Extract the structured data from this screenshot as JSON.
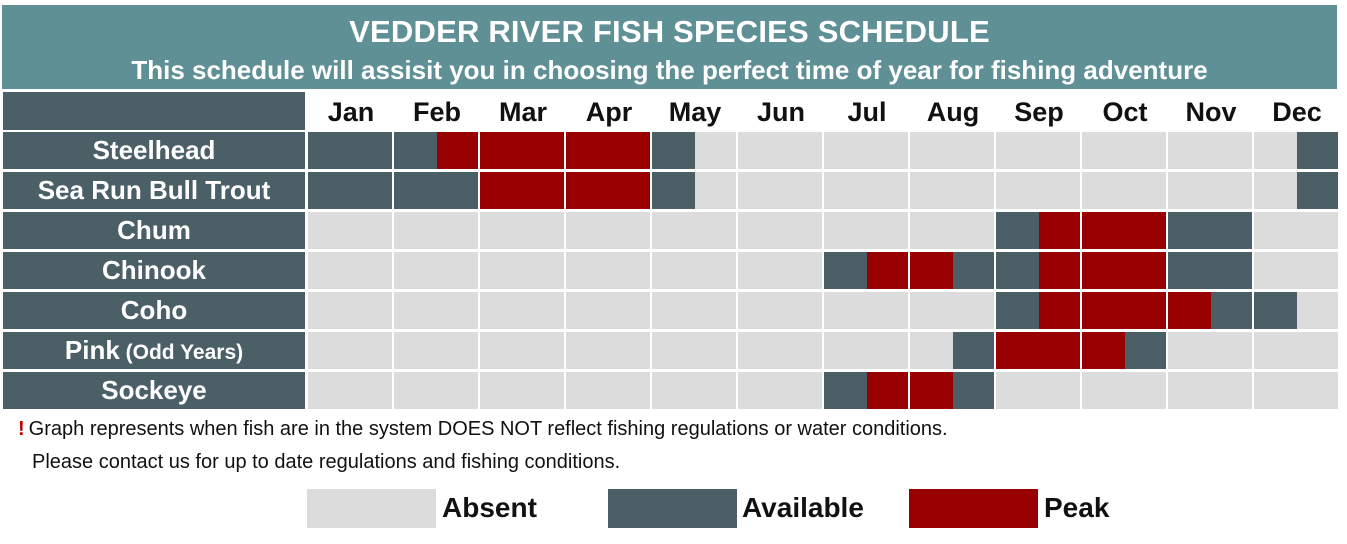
{
  "title": "VEDDER RIVER FISH SPECIES SCHEDULE",
  "subtitle": "This schedule will assisit you in choosing the perfect time of year for fishing adventure",
  "colors": {
    "absent": "#dcdcdc",
    "available": "#4b5f66",
    "peak": "#990000",
    "header_bg": "#5f9095",
    "label_bg": "#4b5f66"
  },
  "chart_data": {
    "type": "table",
    "months": [
      "Jan",
      "Feb",
      "Mar",
      "Apr",
      "May",
      "Jun",
      "Jul",
      "Aug",
      "Sep",
      "Oct",
      "Nov",
      "Dec"
    ],
    "status_codes": {
      "a": "Absent",
      "v": "Available",
      "p": "Peak"
    },
    "half_month_resolution": true,
    "species": [
      {
        "name": "Steelhead",
        "qualifier": "",
        "half_months": [
          "v",
          "v",
          "v",
          "p",
          "p",
          "p",
          "p",
          "p",
          "v",
          "a",
          "a",
          "a",
          "a",
          "a",
          "a",
          "a",
          "a",
          "a",
          "a",
          "a",
          "a",
          "a",
          "a",
          "v"
        ]
      },
      {
        "name": "Sea Run Bull Trout",
        "qualifier": "",
        "half_months": [
          "v",
          "v",
          "v",
          "v",
          "p",
          "p",
          "p",
          "p",
          "v",
          "a",
          "a",
          "a",
          "a",
          "a",
          "a",
          "a",
          "a",
          "a",
          "a",
          "a",
          "a",
          "a",
          "a",
          "v"
        ]
      },
      {
        "name": "Chum",
        "qualifier": "",
        "half_months": [
          "a",
          "a",
          "a",
          "a",
          "a",
          "a",
          "a",
          "a",
          "a",
          "a",
          "a",
          "a",
          "a",
          "a",
          "a",
          "a",
          "v",
          "p",
          "p",
          "p",
          "v",
          "v",
          "a",
          "a"
        ]
      },
      {
        "name": "Chinook",
        "qualifier": "",
        "half_months": [
          "a",
          "a",
          "a",
          "a",
          "a",
          "a",
          "a",
          "a",
          "a",
          "a",
          "a",
          "a",
          "v",
          "p",
          "p",
          "v",
          "v",
          "p",
          "p",
          "p",
          "v",
          "v",
          "a",
          "a"
        ]
      },
      {
        "name": "Coho",
        "qualifier": "",
        "half_months": [
          "a",
          "a",
          "a",
          "a",
          "a",
          "a",
          "a",
          "a",
          "a",
          "a",
          "a",
          "a",
          "a",
          "a",
          "a",
          "a",
          "v",
          "p",
          "p",
          "p",
          "p",
          "v",
          "v",
          "a"
        ]
      },
      {
        "name": "Pink",
        "qualifier": "(Odd Years)",
        "half_months": [
          "a",
          "a",
          "a",
          "a",
          "a",
          "a",
          "a",
          "a",
          "a",
          "a",
          "a",
          "a",
          "a",
          "a",
          "a",
          "v",
          "p",
          "p",
          "p",
          "v",
          "a",
          "a",
          "a",
          "a"
        ]
      },
      {
        "name": "Sockeye",
        "qualifier": "",
        "half_months": [
          "a",
          "a",
          "a",
          "a",
          "a",
          "a",
          "a",
          "a",
          "a",
          "a",
          "a",
          "a",
          "v",
          "p",
          "p",
          "v",
          "a",
          "a",
          "a",
          "a",
          "a",
          "a",
          "a",
          "a"
        ]
      }
    ]
  },
  "notes": {
    "mark": "!",
    "line1": "Graph represents when fish are in the system DOES NOT reflect fishing regulations or water conditions.",
    "line2": "Please contact us for up to date regulations and fishing conditions."
  },
  "legend": [
    {
      "key": "absent",
      "label": "Absent"
    },
    {
      "key": "available",
      "label": "Available"
    },
    {
      "key": "peak",
      "label": "Peak"
    }
  ]
}
